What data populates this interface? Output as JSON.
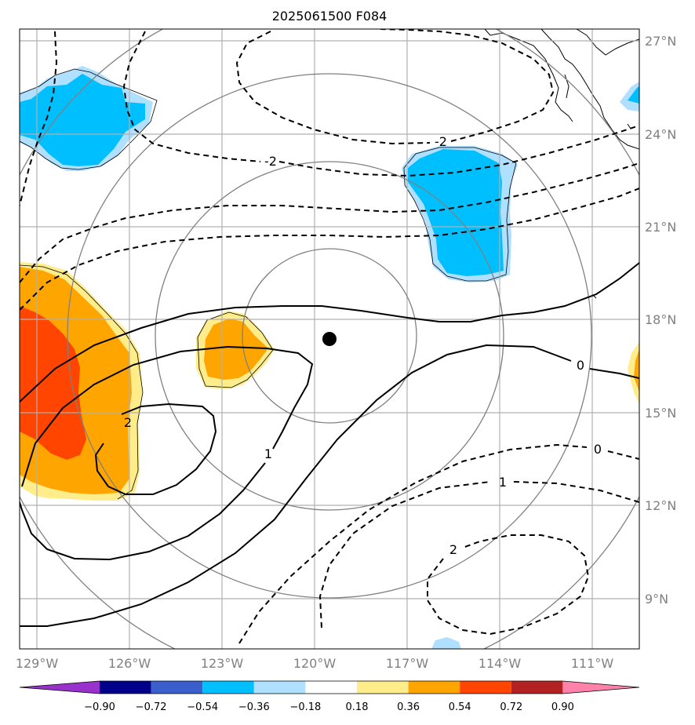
{
  "title": "2025061500 F084",
  "map": {
    "lon_range": [
      -129.8,
      -109.5
    ],
    "lat_range": [
      7.5,
      27.3
    ],
    "x_ticks": [
      "129°W",
      "126°W",
      "123°W",
      "120°W",
      "117°W",
      "114°W",
      "111°W"
    ],
    "y_ticks": [
      "27°N",
      "24°N",
      "21°N",
      "18°N",
      "15°N",
      "12°N",
      "9°N"
    ],
    "center_marker": {
      "lon": -119.6,
      "lat": 17.4
    },
    "range_rings_count": 4
  },
  "contour_labels": {
    "neg2_north": "-2",
    "neg2_northeast": "-2",
    "zero_east": "0",
    "zero_southeast": "0",
    "one_west": "1",
    "one_southeast": "1",
    "two_west": "2",
    "two_southeast": "2"
  },
  "colorbar": {
    "ticks": [
      "−0.90",
      "−0.72",
      "−0.54",
      "−0.36",
      "−0.18",
      "0.18",
      "0.36",
      "0.54",
      "0.72",
      "0.90"
    ],
    "colors": [
      "#9932cc",
      "#00008b",
      "#3a5fcd",
      "#00bfff",
      "#b0e0ff",
      "#ffffff",
      "#ffec8b",
      "#ffa500",
      "#ff4500",
      "#b22222",
      "#ff82ab"
    ]
  }
}
